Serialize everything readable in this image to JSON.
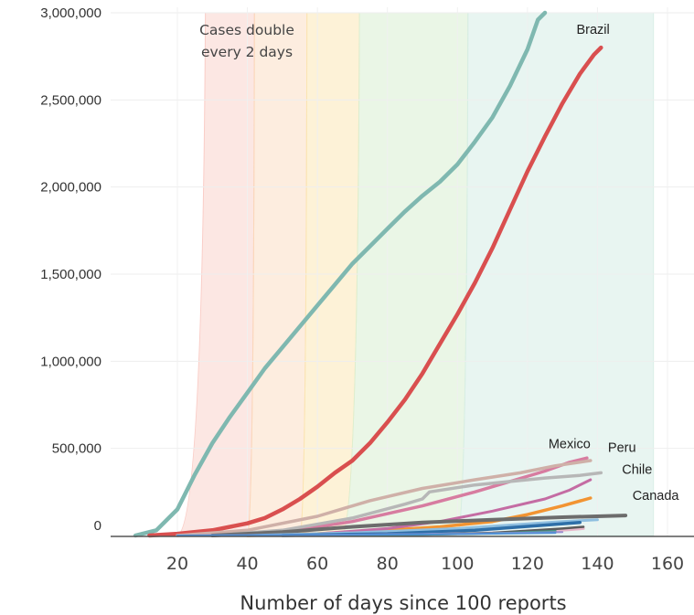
{
  "chart_data": {
    "type": "line",
    "title": "",
    "xlabel": "Number of days since 100 reports",
    "ylabel": "",
    "xlim": [
      0,
      160
    ],
    "ylim": [
      0,
      3000000
    ],
    "x_ticks": [
      "20",
      "40",
      "60",
      "80",
      "100",
      "120",
      "140",
      "160"
    ],
    "y_ticks": [
      "0",
      "500,000",
      "1,000,000",
      "1,500,000",
      "2,000,000",
      "2,500,000",
      "3,000,000"
    ],
    "grid": true,
    "annotation": {
      "lines": [
        "Cases double",
        "every 2 days"
      ]
    },
    "bands": [
      {
        "color": "#f9c9c2",
        "opacity": 0.45,
        "left": [
          {
            "x": 20,
            "y": 0
          },
          {
            "x": 28,
            "y": 3000000
          }
        ],
        "right": [
          {
            "x": 40,
            "y": 0
          },
          {
            "x": 42,
            "y": 3000000
          }
        ]
      },
      {
        "color": "#fbd8b8",
        "opacity": 0.45,
        "left": [
          {
            "x": 40,
            "y": 0
          },
          {
            "x": 42,
            "y": 3000000
          }
        ],
        "right": [
          {
            "x": 55,
            "y": 0
          },
          {
            "x": 57,
            "y": 3000000
          }
        ]
      },
      {
        "color": "#fbe6b0",
        "opacity": 0.5,
        "left": [
          {
            "x": 55,
            "y": 0
          },
          {
            "x": 57,
            "y": 3000000
          }
        ],
        "right": [
          {
            "x": 67,
            "y": 0
          },
          {
            "x": 72,
            "y": 3000000
          }
        ]
      },
      {
        "color": "#d9eed2",
        "opacity": 0.55,
        "left": [
          {
            "x": 67,
            "y": 0
          },
          {
            "x": 72,
            "y": 3000000
          }
        ],
        "right": [
          {
            "x": 100,
            "y": 0
          },
          {
            "x": 103,
            "y": 3000000
          }
        ]
      },
      {
        "color": "#d6ede6",
        "opacity": 0.55,
        "left": [
          {
            "x": 100,
            "y": 0
          },
          {
            "x": 103,
            "y": 3000000
          }
        ],
        "right": [
          {
            "x": 156,
            "y": 0
          },
          {
            "x": 156,
            "y": 3000000
          }
        ]
      }
    ],
    "series": [
      {
        "color": "#7fb8b0",
        "width": 4.5,
        "points": [
          [
            8,
            0
          ],
          [
            14,
            30000
          ],
          [
            20,
            150000
          ],
          [
            25,
            350000
          ],
          [
            30,
            530000
          ],
          [
            35,
            680000
          ],
          [
            40,
            820000
          ],
          [
            45,
            960000
          ],
          [
            50,
            1080000
          ],
          [
            55,
            1200000
          ],
          [
            60,
            1320000
          ],
          [
            65,
            1440000
          ],
          [
            70,
            1560000
          ],
          [
            75,
            1660000
          ],
          [
            80,
            1760000
          ],
          [
            85,
            1860000
          ],
          [
            90,
            1950000
          ],
          [
            95,
            2030000
          ],
          [
            100,
            2130000
          ],
          [
            105,
            2260000
          ],
          [
            110,
            2400000
          ],
          [
            115,
            2580000
          ],
          [
            120,
            2790000
          ],
          [
            123,
            2960000
          ],
          [
            125,
            3000000
          ]
        ]
      },
      {
        "name": "Brazil",
        "color": "#d94f4f",
        "width": 4.5,
        "points": [
          [
            12,
            0
          ],
          [
            20,
            10000
          ],
          [
            30,
            30000
          ],
          [
            40,
            70000
          ],
          [
            45,
            100000
          ],
          [
            50,
            150000
          ],
          [
            55,
            210000
          ],
          [
            60,
            280000
          ],
          [
            65,
            360000
          ],
          [
            70,
            430000
          ],
          [
            75,
            530000
          ],
          [
            80,
            650000
          ],
          [
            85,
            780000
          ],
          [
            90,
            930000
          ],
          [
            95,
            1100000
          ],
          [
            100,
            1270000
          ],
          [
            105,
            1450000
          ],
          [
            110,
            1650000
          ],
          [
            115,
            1870000
          ],
          [
            120,
            2090000
          ],
          [
            125,
            2290000
          ],
          [
            130,
            2480000
          ],
          [
            135,
            2650000
          ],
          [
            139,
            2760000
          ],
          [
            141,
            2800000
          ]
        ]
      },
      {
        "name": "Mexico",
        "color": "#d77ca0",
        "width": 3.5,
        "points": [
          [
            30,
            0
          ],
          [
            50,
            20000
          ],
          [
            70,
            80000
          ],
          [
            90,
            170000
          ],
          [
            105,
            250000
          ],
          [
            115,
            310000
          ],
          [
            125,
            370000
          ],
          [
            132,
            420000
          ],
          [
            137,
            445000
          ]
        ]
      },
      {
        "name": "Peru",
        "color": "#cfb0a8",
        "width": 3.5,
        "points": [
          [
            20,
            0
          ],
          [
            40,
            30000
          ],
          [
            60,
            110000
          ],
          [
            75,
            200000
          ],
          [
            90,
            270000
          ],
          [
            105,
            320000
          ],
          [
            118,
            360000
          ],
          [
            128,
            400000
          ],
          [
            138,
            430000
          ]
        ]
      },
      {
        "name": "Chile",
        "color": "#b7b7b7",
        "width": 3.5,
        "points": [
          [
            30,
            0
          ],
          [
            50,
            30000
          ],
          [
            70,
            100000
          ],
          [
            85,
            180000
          ],
          [
            90,
            210000
          ],
          [
            92,
            250000
          ],
          [
            105,
            290000
          ],
          [
            115,
            310000
          ],
          [
            125,
            330000
          ],
          [
            135,
            345000
          ],
          [
            141,
            360000
          ]
        ]
      },
      {
        "name": "Canada",
        "color": "#f29432",
        "width": 3.5,
        "points": [
          [
            40,
            0
          ],
          [
            60,
            10000
          ],
          [
            80,
            30000
          ],
          [
            95,
            50000
          ],
          [
            110,
            80000
          ],
          [
            120,
            120000
          ],
          [
            130,
            170000
          ],
          [
            138,
            215000
          ]
        ]
      },
      {
        "color": "#c46ca3",
        "width": 3,
        "points": [
          [
            40,
            0
          ],
          [
            60,
            10000
          ],
          [
            80,
            40000
          ],
          [
            95,
            80000
          ],
          [
            110,
            140000
          ],
          [
            125,
            210000
          ],
          [
            132,
            260000
          ],
          [
            138,
            320000
          ]
        ]
      },
      {
        "color": "#6c6c6c",
        "width": 4,
        "points": [
          [
            30,
            0
          ],
          [
            50,
            20000
          ],
          [
            70,
            50000
          ],
          [
            90,
            75000
          ],
          [
            110,
            90000
          ],
          [
            130,
            105000
          ],
          [
            148,
            115000
          ]
        ]
      },
      {
        "color": "#8fbfe0",
        "width": 3,
        "points": [
          [
            40,
            0
          ],
          [
            70,
            15000
          ],
          [
            100,
            40000
          ],
          [
            130,
            80000
          ],
          [
            140,
            90000
          ]
        ]
      },
      {
        "color": "#2e6fa8",
        "width": 3.5,
        "points": [
          [
            50,
            0
          ],
          [
            80,
            10000
          ],
          [
            105,
            30000
          ],
          [
            125,
            60000
          ],
          [
            135,
            75000
          ]
        ]
      },
      {
        "color": "#e7b7c9",
        "width": 3,
        "points": [
          [
            60,
            0
          ],
          [
            90,
            5000
          ],
          [
            110,
            15000
          ],
          [
            130,
            30000
          ],
          [
            136,
            40000
          ]
        ]
      },
      {
        "color": "#5a5a5a",
        "width": 2.5,
        "points": [
          [
            60,
            0
          ],
          [
            90,
            5000
          ],
          [
            110,
            15000
          ],
          [
            130,
            40000
          ],
          [
            136,
            50000
          ]
        ]
      },
      {
        "color": "#3d9a84",
        "width": 2.5,
        "points": [
          [
            60,
            0
          ],
          [
            90,
            5000
          ],
          [
            115,
            15000
          ],
          [
            128,
            25000
          ]
        ]
      },
      {
        "color": "#9a8fd0",
        "width": 2,
        "points": [
          [
            20,
            0
          ],
          [
            60,
            4000
          ],
          [
            100,
            10000
          ],
          [
            130,
            20000
          ]
        ]
      },
      {
        "color": "#4f8fd6",
        "width": 2,
        "points": [
          [
            20,
            0
          ],
          [
            60,
            3000
          ],
          [
            100,
            8000
          ],
          [
            128,
            15000
          ]
        ]
      }
    ],
    "labels": [
      {
        "text": "Brazil",
        "x": 134,
        "y": 2880000
      },
      {
        "text": "Mexico",
        "x": 126,
        "y": 500000
      },
      {
        "text": "Peru",
        "x": 143,
        "y": 480000
      },
      {
        "text": "Chile",
        "x": 147,
        "y": 355000
      },
      {
        "text": "Canada",
        "x": 150,
        "y": 205000
      }
    ]
  }
}
